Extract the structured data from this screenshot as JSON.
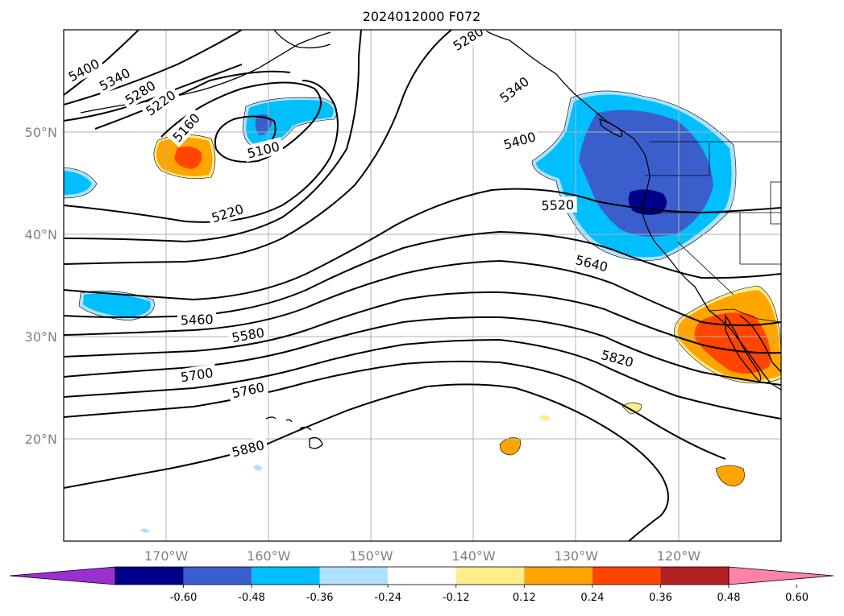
{
  "title": "2024012000 F072",
  "projection": "platecarree",
  "extent": {
    "lon_min": -180,
    "lon_max": -110,
    "lat_min": 10,
    "lat_max": 60
  },
  "lat_labels": [
    {
      "lat": 50,
      "label": "50°N"
    },
    {
      "lat": 40,
      "label": "40°N"
    },
    {
      "lat": 30,
      "label": "30°N"
    },
    {
      "lat": 20,
      "label": "20°N"
    }
  ],
  "lon_labels": [
    {
      "lon": -170,
      "label": "170°W"
    },
    {
      "lon": -160,
      "label": "160°W"
    },
    {
      "lon": -150,
      "label": "150°W"
    },
    {
      "lon": -140,
      "label": "140°W"
    },
    {
      "lon": -130,
      "label": "130°W"
    },
    {
      "lon": -120,
      "label": "120°W"
    }
  ],
  "contour_labels": [
    {
      "text": "5400",
      "lon": -178,
      "lat": 56.0,
      "rot": -28
    },
    {
      "text": "5340",
      "lon": -175,
      "lat": 55.1,
      "rot": -28
    },
    {
      "text": "5280",
      "lon": -172.5,
      "lat": 53.8,
      "rot": -32
    },
    {
      "text": "5220",
      "lon": -170.5,
      "lat": 52.8,
      "rot": -36
    },
    {
      "text": "5160",
      "lon": -168,
      "lat": 50.4,
      "rot": -48
    },
    {
      "text": "5100",
      "lon": -160.5,
      "lat": 48.2,
      "rot": -14
    },
    {
      "text": "5220",
      "lon": -164,
      "lat": 42.0,
      "rot": -18
    },
    {
      "text": "5460",
      "lon": -167,
      "lat": 31.6,
      "rot": -2
    },
    {
      "text": "5580",
      "lon": -162,
      "lat": 30.1,
      "rot": -10
    },
    {
      "text": "5700",
      "lon": -167,
      "lat": 26.2,
      "rot": -9
    },
    {
      "text": "5760",
      "lon": -162,
      "lat": 24.7,
      "rot": -12
    },
    {
      "text": "5880",
      "lon": -162,
      "lat": 19.0,
      "rot": -14
    },
    {
      "text": "5280",
      "lon": -140.5,
      "lat": 59.1,
      "rot": -32
    },
    {
      "text": "5340",
      "lon": -136,
      "lat": 54.1,
      "rot": -38
    },
    {
      "text": "5400",
      "lon": -135.5,
      "lat": 49.1,
      "rot": -16
    },
    {
      "text": "5520",
      "lon": -131.8,
      "lat": 42.8,
      "rot": -2
    },
    {
      "text": "5640",
      "lon": -128.5,
      "lat": 37.1,
      "rot": 14
    },
    {
      "text": "5820",
      "lon": -126,
      "lat": 27.8,
      "rot": 15
    }
  ],
  "colorbar": {
    "ticks": [
      "-0.60",
      "-0.48",
      "-0.36",
      "-0.24",
      "-0.12",
      "0.12",
      "0.24",
      "0.36",
      "0.48",
      "0.60"
    ],
    "colors": [
      "#9b30d0",
      "#00008b",
      "#3a5fcd",
      "#00bfff",
      "#b0e2ff",
      "#ffffff",
      "#ffec8b",
      "#ffa500",
      "#ff4500",
      "#b22222",
      "#ff83a8"
    ]
  }
}
